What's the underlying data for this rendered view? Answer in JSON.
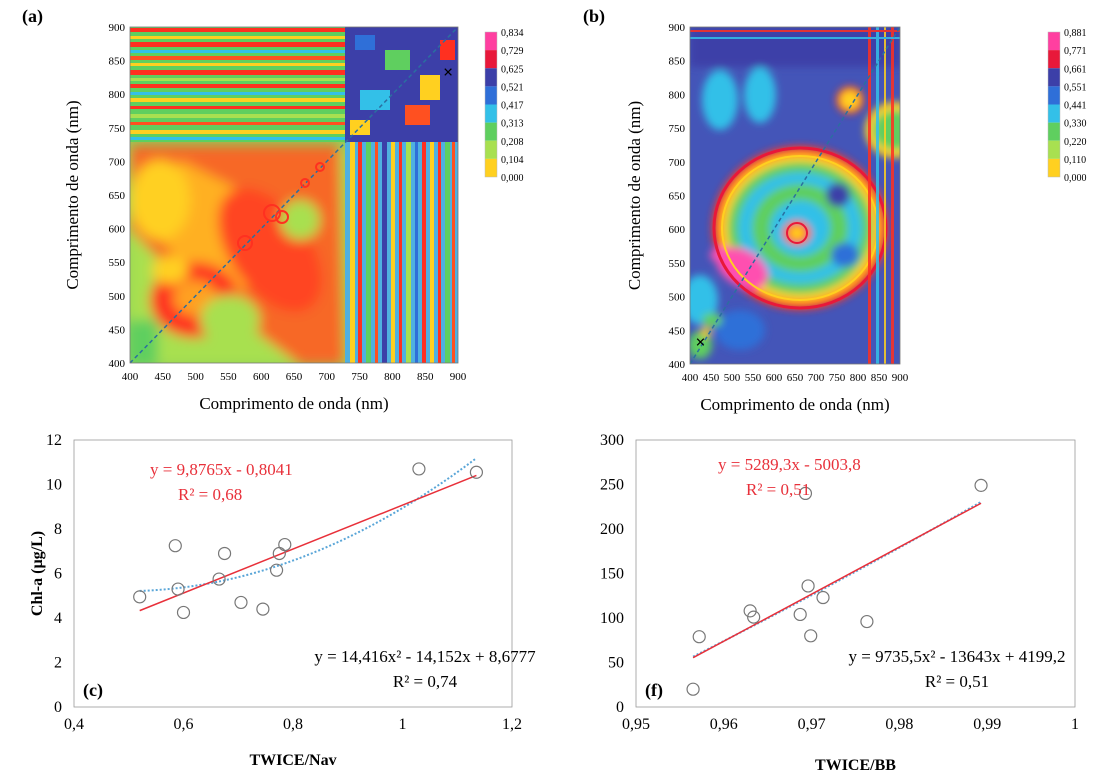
{
  "chart_data": [
    {
      "panel": "(a)",
      "type": "heatmap",
      "xlabel": "Comprimento de onda (nm)",
      "ylabel": "Comprimento  de onda (nm)",
      "xticks": [
        "400",
        "450",
        "500",
        "550",
        "600",
        "650",
        "700",
        "750",
        "800",
        "850",
        "900"
      ],
      "yticks": [
        "400",
        "450",
        "500",
        "550",
        "600",
        "650",
        "700",
        "750",
        "800",
        "850",
        "900"
      ],
      "xlim": [
        400,
        900
      ],
      "ylim": [
        400,
        900
      ],
      "colorbar": [
        "0,834",
        "0,729",
        "0,625",
        "0,521",
        "0,417",
        "0,313",
        "0,208",
        "0,104",
        "0,000"
      ],
      "colorbar_colors": [
        "#ff3fa0",
        "#e8183a",
        "#3c3fa8",
        "#2f6fd8",
        "#33c0e8",
        "#5fcf5f",
        "#a8e050",
        "#ffd020",
        "#ff3020"
      ],
      "marker": {
        "x": 885,
        "y": 830,
        "symbol": "×"
      }
    },
    {
      "panel": "(b)",
      "type": "heatmap",
      "xlabel": "Comprimento de onda (nm)",
      "ylabel": "Comprimento  de onda (nm)",
      "xticks": [
        "400",
        "450",
        "500",
        "550",
        "600",
        "650",
        "700",
        "750",
        "800",
        "850",
        "900"
      ],
      "yticks": [
        "400",
        "450",
        "500",
        "550",
        "600",
        "650",
        "700",
        "750",
        "800",
        "850",
        "900"
      ],
      "xlim": [
        400,
        900
      ],
      "ylim": [
        400,
        900
      ],
      "colorbar": [
        "0,881",
        "0,771",
        "0,661",
        "0,551",
        "0,441",
        "0,330",
        "0,220",
        "0,110",
        "0,000"
      ],
      "colorbar_colors": [
        "#ff3fa0",
        "#e8183a",
        "#3c3fa8",
        "#2f6fd8",
        "#33c0e8",
        "#5fcf5f",
        "#a8e050",
        "#ffd020",
        "#ff3020"
      ],
      "marker": {
        "x": 425,
        "y": 430,
        "symbol": "×"
      }
    },
    {
      "panel": "(c)",
      "type": "scatter",
      "xlabel": "TWICE/Nav",
      "ylabel": "Chl-a  (µg/L)",
      "xlim": [
        0.4,
        1.2
      ],
      "ylim": [
        0,
        12
      ],
      "xticks": [
        "0,4",
        "0,6",
        "0,8",
        "1",
        "1,2"
      ],
      "yticks": [
        "0",
        "2",
        "4",
        "6",
        "8",
        "10",
        "12"
      ],
      "points": [
        {
          "x": 0.52,
          "y": 4.95
        },
        {
          "x": 0.585,
          "y": 7.25
        },
        {
          "x": 0.59,
          "y": 5.3
        },
        {
          "x": 0.6,
          "y": 4.25
        },
        {
          "x": 0.665,
          "y": 5.75
        },
        {
          "x": 0.675,
          "y": 6.9
        },
        {
          "x": 0.705,
          "y": 4.7
        },
        {
          "x": 0.745,
          "y": 4.4
        },
        {
          "x": 0.77,
          "y": 6.15
        },
        {
          "x": 0.775,
          "y": 6.9
        },
        {
          "x": 0.785,
          "y": 7.3
        },
        {
          "x": 1.03,
          "y": 10.7
        },
        {
          "x": 1.135,
          "y": 10.55
        }
      ],
      "linear_fit": {
        "slope": 9.8765,
        "intercept": -0.8041,
        "x_range": [
          0.52,
          1.135
        ]
      },
      "poly_fit": {
        "a": 14.416,
        "b": -14.152,
        "c": 8.6777,
        "x_range": [
          0.52,
          1.135
        ]
      },
      "colors": {
        "linear": "#e8303a",
        "poly": "#5aa6d8",
        "point": "#777777"
      },
      "annotations": {
        "linear_eq": "y = 9,8765x - 0,8041",
        "linear_r2": "R² = 0,68",
        "poly_eq": "y = 14,416x² - 14,152x + 8,6777",
        "poly_r2": "R² = 0,74"
      }
    },
    {
      "panel": "(f)",
      "type": "scatter",
      "xlabel": "TWICE/BB",
      "ylabel": "",
      "xlim": [
        0.95,
        1.0
      ],
      "ylim": [
        0,
        300
      ],
      "xticks": [
        "0,95",
        "0,96",
        "0,97",
        "0,98",
        "0,99",
        "1"
      ],
      "yticks": [
        "0",
        "50",
        "100",
        "150",
        "200",
        "250",
        "300"
      ],
      "points": [
        {
          "x": 0.9565,
          "y": 20
        },
        {
          "x": 0.9572,
          "y": 79
        },
        {
          "x": 0.963,
          "y": 108
        },
        {
          "x": 0.9634,
          "y": 101
        },
        {
          "x": 0.9687,
          "y": 104
        },
        {
          "x": 0.9693,
          "y": 240
        },
        {
          "x": 0.9696,
          "y": 136
        },
        {
          "x": 0.9699,
          "y": 80
        },
        {
          "x": 0.9713,
          "y": 123
        },
        {
          "x": 0.9763,
          "y": 96
        },
        {
          "x": 0.9893,
          "y": 249
        }
      ],
      "linear_fit": {
        "slope": 5289.3,
        "intercept": -5003.8,
        "x_range": [
          0.9565,
          0.9893
        ]
      },
      "poly_fit": {
        "a": 9735.5,
        "b": -13643,
        "c": 4199.2,
        "x_range": [
          0.9565,
          0.9893
        ]
      },
      "colors": {
        "linear": "#e8303a",
        "poly": "#5aa6d8",
        "point": "#777777"
      },
      "annotations": {
        "linear_eq": "y = 5289,3x - 5003,8",
        "linear_r2": "R² = 0,51",
        "poly_eq": "y = 9735,5x² - 13643x + 4199,2",
        "poly_r2": "R² = 0,51"
      }
    }
  ]
}
